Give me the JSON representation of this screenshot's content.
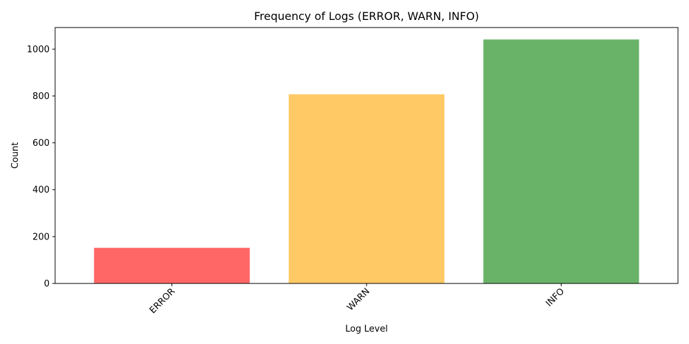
{
  "chart_data": {
    "type": "bar",
    "title": "Frequency of Logs (ERROR, WARN, INFO)",
    "xlabel": "Log Level",
    "ylabel": "Count",
    "categories": [
      "ERROR",
      "WARN",
      "INFO"
    ],
    "values": [
      152,
      807,
      1041
    ],
    "colors": [
      "#ff6666",
      "#ffc966",
      "#69b369"
    ],
    "ylim": [
      0,
      1092
    ],
    "yticks": [
      0,
      200,
      400,
      600,
      800,
      1000
    ],
    "ytick_labels": [
      "0",
      "200",
      "400",
      "600",
      "800",
      "1000"
    ],
    "grid": false,
    "legend": "none"
  }
}
